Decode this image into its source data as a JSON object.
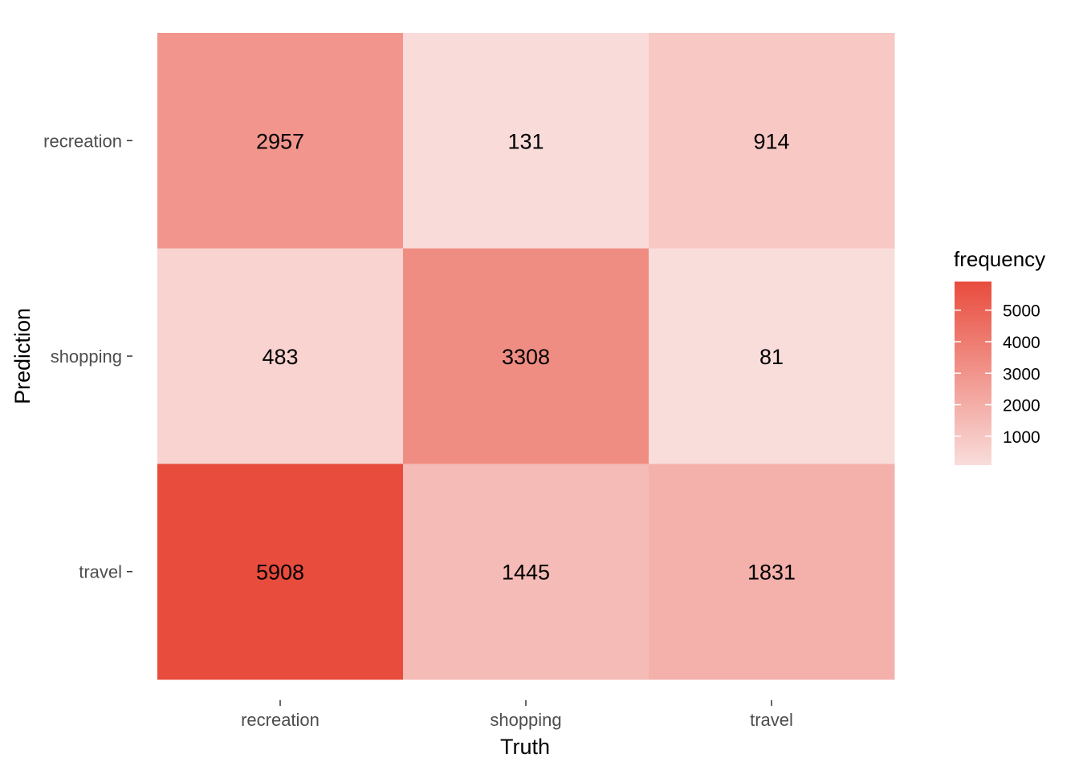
{
  "chart_data": {
    "type": "heatmap",
    "x_categories": [
      "recreation",
      "shopping",
      "travel"
    ],
    "y_categories": [
      "recreation",
      "shopping",
      "travel"
    ],
    "xlabel": "Truth",
    "ylabel": "Prediction",
    "values": [
      [
        2957,
        131,
        914
      ],
      [
        483,
        3308,
        81
      ],
      [
        5908,
        1445,
        1831
      ]
    ],
    "legend": {
      "title": "frequency",
      "breaks": [
        1000,
        2000,
        3000,
        4000,
        5000
      ],
      "labels": [
        "1000",
        "2000",
        "3000",
        "4000",
        "5000"
      ],
      "placement": "right",
      "range": [
        81,
        5908
      ]
    },
    "colors": {
      "low": "#f9dddb",
      "high": "#e84c3d"
    },
    "grid": false
  }
}
